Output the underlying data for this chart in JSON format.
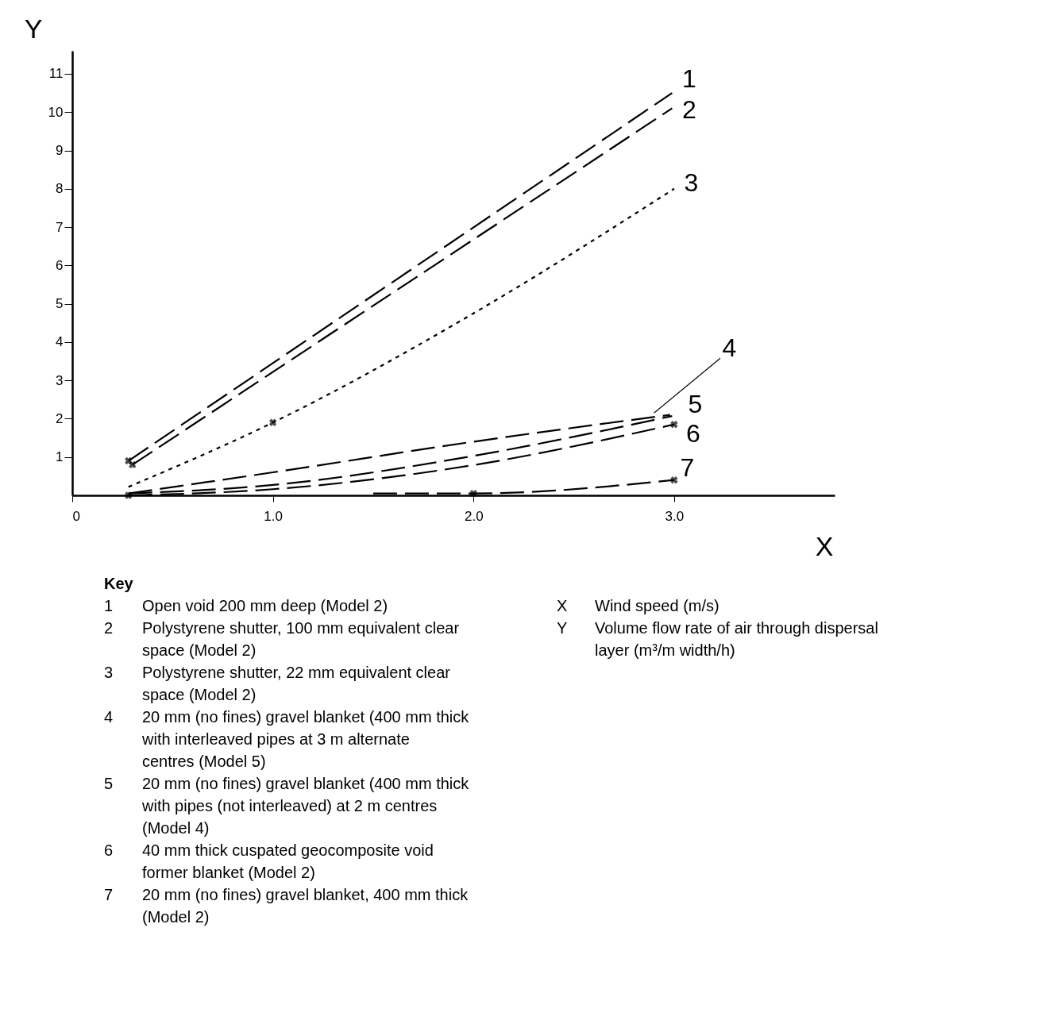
{
  "chart_data": {
    "type": "line",
    "xlabel": "X",
    "ylabel": "Y",
    "xlim": [
      0,
      3.8
    ],
    "ylim": [
      0,
      11.6
    ],
    "xticks": [
      0,
      {
        "value": 1,
        "label": "1.0"
      },
      {
        "value": 2,
        "label": "2.0"
      },
      {
        "value": 3,
        "label": "3.0"
      }
    ],
    "yticks": [
      1,
      2,
      3,
      4,
      5,
      6,
      7,
      8,
      9,
      10,
      11
    ],
    "grid": false,
    "legend": "right",
    "marker": "none",
    "series": [
      {
        "name": "1",
        "color": "#000000",
        "line_style": "dashed",
        "x": [
          0.28,
          2.99
        ],
        "values": [
          0.9,
          10.5
        ]
      },
      {
        "name": "2",
        "color": "#000000",
        "line_style": "dashed",
        "x": [
          0.3,
          2.99
        ],
        "values": [
          0.8,
          10.1
        ]
      },
      {
        "name": "3",
        "color": "#000000",
        "line_style": "dotted",
        "x": [
          0.28,
          1.0,
          2.0,
          3.0
        ],
        "values": [
          0.22,
          1.9,
          4.75,
          8.0
        ]
      },
      {
        "name": "4",
        "color": "#000000",
        "line_style": "dashed",
        "x": [
          0.28,
          1.0,
          2.0,
          2.98
        ],
        "values": [
          0.05,
          0.6,
          1.4,
          2.1
        ]
      },
      {
        "name": "5",
        "color": "#000000",
        "line_style": "dashed",
        "x": [
          0.28,
          1.0,
          2.0,
          2.99
        ],
        "values": [
          0.05,
          0.27,
          1.03,
          2.07
        ]
      },
      {
        "name": "6",
        "color": "#000000",
        "line_style": "dashed",
        "x": [
          0.28,
          1.0,
          2.0,
          3.0
        ],
        "values": [
          0.0,
          0.16,
          0.79,
          1.85
        ]
      },
      {
        "name": "7",
        "color": "#000000",
        "line_style": "dashed",
        "x": [
          1.5,
          2.0,
          3.0
        ],
        "values": [
          0.05,
          0.05,
          0.4
        ]
      },
      {
        "type": "scatter",
        "marker": "cross",
        "color": "#000000",
        "x": [
          0.28,
          0.3,
          1.0,
          0.28,
          3.0,
          2.0,
          3.0
        ],
        "values": [
          0.9,
          0.8,
          1.9,
          0.0,
          1.85,
          0.05,
          0.4
        ]
      }
    ],
    "annotations": [
      "Key",
      "1 Open void 200 mm deep (Model 2)",
      "2 Polystyrene shutter, 100 mm equivalent clear\nspace (Model 2)",
      "3 Polystyrene shutter, 22 mm equivalent clear\nspace (Model 2)",
      "4 20 mm (no fines) gravel blanket (400 mm thick\nwith interleaved pipes at 3 m alternate\ncentres (Model 5)",
      "5 20 mm (no fines) gravel blanket (400 mm thick\nwith pipes (not interleaved) at 2 m centres\n(Model 4)",
      "6 40 mm thick cuspated geocomposite void\nformer blanket (Model 2)",
      "7 20 mm (no fines) gravel blanket, 400 mm thick\n(Model 2)",
      "X Wind speed (m/s)",
      "Y Volume flow rate of air through dispersal\nlayer (m³/m width/h)"
    ]
  }
}
